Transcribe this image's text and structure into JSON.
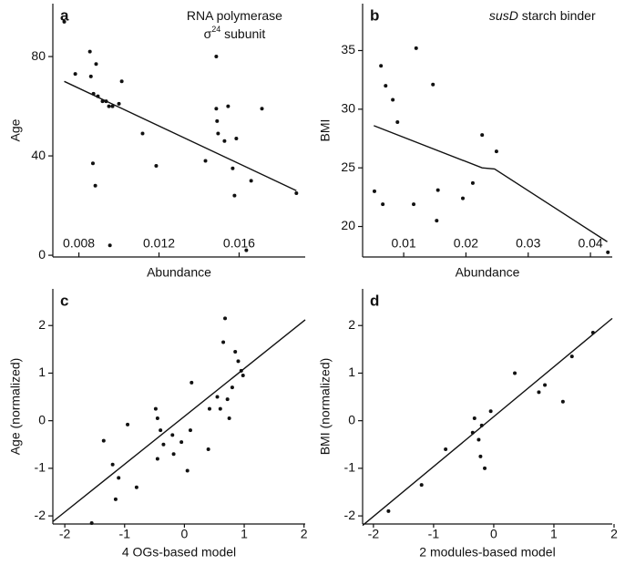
{
  "chart_data": [
    {
      "type": "scatter",
      "panel_label": "a",
      "annotation": [
        [
          "RNA polymerase"
        ],
        [
          "σ",
          "24",
          " subunit"
        ]
      ],
      "x_label": "Abundance",
      "y_label": "Age",
      "xlim": [
        0.0067,
        0.0193
      ],
      "ylim": [
        -0.7,
        101.3
      ],
      "xticks": [
        0.008,
        0.012,
        0.016
      ],
      "yticks": [
        0,
        40,
        80
      ],
      "x": [
        0.00727,
        0.00782,
        0.00855,
        0.00886,
        0.0086,
        0.00873,
        0.00895,
        0.00918,
        0.00936,
        0.0095,
        0.00968,
        0.01,
        0.01014,
        0.0087,
        0.00882,
        0.00955,
        0.01118,
        0.01186,
        0.01432,
        0.01486,
        0.01486,
        0.0149,
        0.01495,
        0.01527,
        0.01545,
        0.01568,
        0.01586,
        0.01577,
        0.01714,
        0.0166,
        0.01636,
        0.01886
      ],
      "y": [
        94,
        73,
        82,
        77,
        72,
        65,
        64,
        62,
        62,
        60,
        60,
        61,
        70,
        37,
        28,
        4,
        49,
        36,
        38,
        80,
        59,
        54,
        49,
        46,
        60,
        35,
        47,
        24,
        59,
        30,
        2,
        25
      ],
      "fit": {
        "x": [
          0.00727,
          0.01886
        ],
        "y": [
          70,
          26
        ]
      }
    },
    {
      "type": "scatter",
      "panel_label": "b",
      "annotation": [
        [
          "susD",
          " starch binder"
        ]
      ],
      "x_label": "Abundance",
      "y_label": "BMI",
      "xlim": [
        0.0034,
        0.0435
      ],
      "ylim": [
        17.4,
        39
      ],
      "xticks": [
        0.01,
        0.02,
        0.03,
        0.04
      ],
      "yticks": [
        20,
        25,
        30,
        35
      ],
      "x": [
        0.00635,
        0.0071,
        0.00825,
        0.009,
        0.0053,
        0.00664,
        0.012,
        0.0116,
        0.0147,
        0.0155,
        0.0153,
        0.0195,
        0.0211,
        0.0226,
        0.0249,
        0.0428
      ],
      "y": [
        33.7,
        32.0,
        30.8,
        28.9,
        23.0,
        21.9,
        35.2,
        21.9,
        32.1,
        23.1,
        20.5,
        22.4,
        23.7,
        27.8,
        26.4,
        17.8
      ],
      "fit": {
        "x": [
          0.0052,
          0.0226,
          0.0246,
          0.0427
        ],
        "y": [
          28.6,
          25.0,
          24.9,
          18.7
        ]
      }
    },
    {
      "type": "scatter",
      "panel_label": "c",
      "x_label": "4 OGs-based model",
      "y_label": "Age (normalized)",
      "xlim": [
        -2.2,
        2.02
      ],
      "ylim": [
        -2.17,
        2.77
      ],
      "xticks": [
        -2,
        -1,
        0,
        1,
        2
      ],
      "yticks": [
        -2,
        -1,
        0,
        1,
        2
      ],
      "x": [
        -1.55,
        -1.35,
        -1.2,
        -1.15,
        -1.1,
        -0.95,
        -0.8,
        -0.48,
        -0.45,
        -0.45,
        -0.4,
        -0.35,
        -0.2,
        -0.18,
        -0.05,
        0.05,
        0.1,
        0.12,
        0.4,
        0.42,
        0.55,
        0.6,
        0.65,
        0.68,
        0.72,
        0.75,
        0.8,
        0.85,
        0.9,
        0.95,
        0.98
      ],
      "y": [
        -2.15,
        -0.42,
        -0.92,
        -1.65,
        -1.2,
        -0.08,
        -1.4,
        0.25,
        0.05,
        -0.8,
        -0.2,
        -0.5,
        -0.3,
        -0.7,
        -0.45,
        -1.05,
        -0.2,
        0.8,
        -0.6,
        0.25,
        0.5,
        0.25,
        1.65,
        2.15,
        0.45,
        0.05,
        0.7,
        1.45,
        1.25,
        1.05,
        0.95
      ],
      "fit": {
        "x": [
          -2.2,
          2.02
        ],
        "y": [
          -2.12,
          2.12
        ]
      }
    },
    {
      "type": "scatter",
      "panel_label": "d",
      "x_label": "2 modules-based model",
      "y_label": "BMI (normalized)",
      "xlim": [
        -2.18,
        1.97
      ],
      "ylim": [
        -2.17,
        2.77
      ],
      "xticks": [
        -2,
        -1,
        0,
        1,
        2
      ],
      "yticks": [
        -2,
        -1,
        0,
        1,
        2
      ],
      "x": [
        -1.75,
        -1.2,
        -0.8,
        -0.35,
        -0.32,
        -0.25,
        -0.22,
        -0.2,
        -0.15,
        -0.05,
        0.35,
        0.75,
        0.85,
        1.15,
        1.3,
        1.65
      ],
      "y": [
        -1.9,
        -1.35,
        -0.6,
        -0.25,
        0.05,
        -0.4,
        -0.75,
        -0.1,
        -1.0,
        0.2,
        1.0,
        0.6,
        0.75,
        0.4,
        1.35,
        1.85
      ],
      "fit": {
        "x": [
          -2.18,
          1.97
        ],
        "y": [
          -2.2,
          2.15
        ]
      }
    }
  ]
}
